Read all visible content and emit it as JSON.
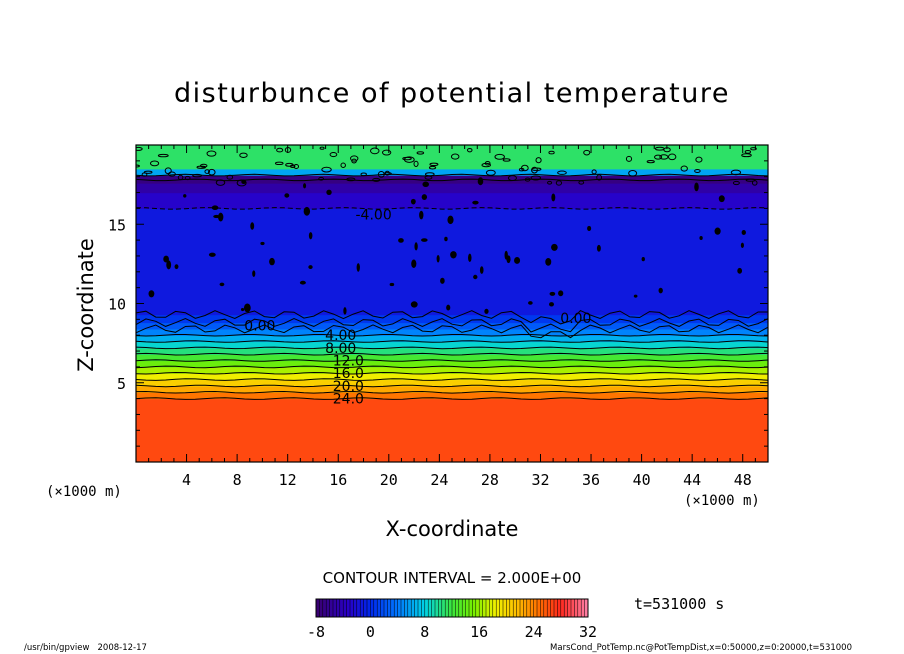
{
  "chart_data": {
    "type": "heatmap",
    "title": "disturbunce of potential temperature",
    "xlabel": "X-coordinate",
    "ylabel": "Z-coordinate",
    "x_unit_left": "(×1000 m)",
    "x_unit_right": "(×1000 m)",
    "xlim": [
      0,
      50
    ],
    "ylim": [
      0,
      20
    ],
    "x_ticks": [
      "4",
      "8",
      "12",
      "16",
      "20",
      "24",
      "28",
      "32",
      "36",
      "40",
      "44",
      "48"
    ],
    "y_ticks": [
      "5",
      "10",
      "15"
    ],
    "bands": [
      {
        "z0": 0,
        "z1": 4.0,
        "value": 26.5
      },
      {
        "z0": 4.0,
        "z1": 4.4,
        "value": 24.5
      },
      {
        "z0": 4.4,
        "z1": 4.8,
        "value": 22.5
      },
      {
        "z0": 4.8,
        "z1": 5.2,
        "value": 20.5
      },
      {
        "z0": 5.2,
        "z1": 5.6,
        "value": 18.5
      },
      {
        "z0": 5.6,
        "z1": 6.0,
        "value": 16.5
      },
      {
        "z0": 6.0,
        "z1": 6.4,
        "value": 14.5
      },
      {
        "z0": 6.4,
        "z1": 6.8,
        "value": 12.5
      },
      {
        "z0": 6.8,
        "z1": 7.2,
        "value": 10.5
      },
      {
        "z0": 7.2,
        "z1": 7.6,
        "value": 8.5
      },
      {
        "z0": 7.6,
        "z1": 8.0,
        "value": 6.5
      },
      {
        "z0": 8.0,
        "z1": 8.4,
        "value": 4.5
      },
      {
        "z0": 8.4,
        "z1": 8.8,
        "value": 2.5
      },
      {
        "z0": 8.8,
        "z1": 9.3,
        "value": 0.8
      },
      {
        "z0": 9.3,
        "z1": 16.0,
        "value": -1.2
      },
      {
        "z0": 16.0,
        "z1": 17.0,
        "value": -3.0
      },
      {
        "z0": 17.0,
        "z1": 17.6,
        "value": -5.0
      },
      {
        "z0": 17.6,
        "z1": 18.1,
        "value": -7.0
      },
      {
        "z0": 18.1,
        "z1": 18.5,
        "value": 6.0
      },
      {
        "z0": 18.5,
        "z1": 20.0,
        "value": 11.0
      }
    ],
    "contour_lines_z": [
      4.0,
      4.4,
      4.8,
      5.2,
      5.6,
      6.0,
      6.4,
      6.8,
      7.2,
      7.6,
      8.0,
      8.4,
      8.8,
      9.3,
      16.0,
      17.8,
      18.1
    ],
    "contour_labels": [
      {
        "text": "-4.00",
        "x": 18.8,
        "z": 15.6
      },
      {
        "text": "0.00",
        "x": 9.8,
        "z": 8.6
      },
      {
        "text": "0.00",
        "x": 34.8,
        "z": 9.1
      },
      {
        "text": "4.00",
        "x": 16.2,
        "z": 8.0
      },
      {
        "text": "8.00",
        "x": 16.2,
        "z": 7.2
      },
      {
        "text": "12.0",
        "x": 16.8,
        "z": 6.4
      },
      {
        "text": "16.0",
        "x": 16.8,
        "z": 5.6
      },
      {
        "text": "20.0",
        "x": 16.8,
        "z": 4.8
      },
      {
        "text": "24.0",
        "x": 16.8,
        "z": 4.0
      }
    ],
    "contour_interval_label": "CONTOUR INTERVAL = 2.000E+00",
    "colorbar": {
      "min": -8,
      "max": 32,
      "step": 2,
      "tick_labels": [
        "-8",
        "0",
        "8",
        "16",
        "24",
        "32"
      ]
    },
    "time_label": "t=531000 s"
  },
  "footer": {
    "left": "/usr/bin/gpview   2008-12-17",
    "right": "MarsCond_PotTemp.nc@PotTempDist,x=0:50000,z=0:20000,t=531000"
  },
  "colors": {
    "frame": "#000000"
  }
}
